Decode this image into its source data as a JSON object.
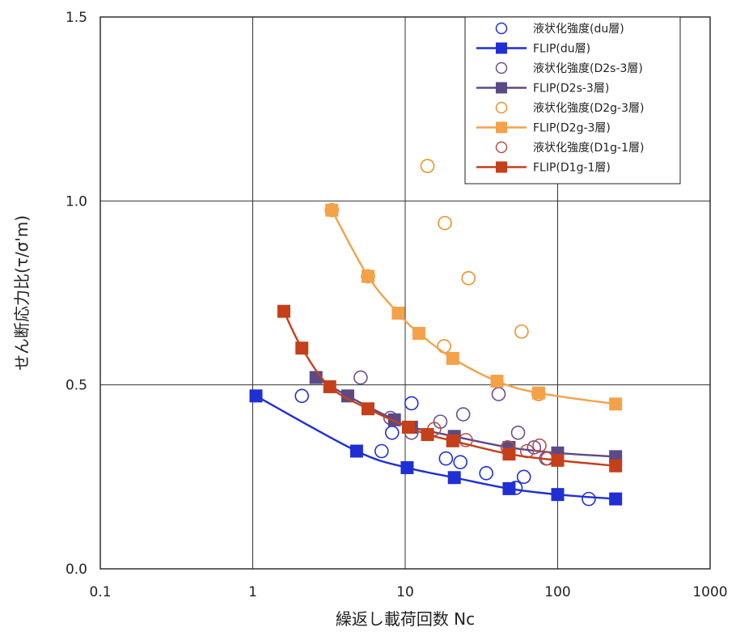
{
  "chart_data": {
    "type": "scatter",
    "title": "",
    "xlabel": "繰返し載荷回数 Nc",
    "ylabel": "せん断応力比(τ/σ'm)",
    "xscale": "log",
    "xlim": [
      0.1,
      1000
    ],
    "ylim": [
      0.0,
      1.5
    ],
    "x_ticks": [
      0.1,
      1,
      10,
      100,
      1000
    ],
    "x_tick_labels": [
      "0.1",
      "1",
      "10",
      "100",
      "1000"
    ],
    "y_ticks": [
      0.0,
      0.5,
      1.0,
      1.5
    ],
    "y_tick_labels": [
      "0.0",
      "0.5",
      "1.0",
      "1.5"
    ],
    "grid": true,
    "legend_position": "top-right",
    "series": [
      {
        "name": "液状化強度(du層)",
        "kind": "scatter",
        "marker": "open-circle",
        "color": "#1f2fd4",
        "x": [
          2.1,
          7.0,
          8.2,
          11.0,
          18.5,
          23.0,
          34.0,
          53.0,
          60.0,
          160.0
        ],
        "y": [
          0.47,
          0.32,
          0.37,
          0.45,
          0.3,
          0.29,
          0.26,
          0.22,
          0.25,
          0.19
        ]
      },
      {
        "name": "FLIP(du層)",
        "kind": "line",
        "marker": "square",
        "color": "#1f2fd4",
        "x": [
          1.05,
          4.8,
          10.3,
          21.0,
          48.0,
          100.0,
          240.0
        ],
        "y": [
          0.47,
          0.32,
          0.275,
          0.248,
          0.218,
          0.202,
          0.19
        ]
      },
      {
        "name": "液状化強度(D2s-3層)",
        "kind": "scatter",
        "marker": "open-circle",
        "color": "#6b4f8e",
        "x": [
          5.1,
          8.0,
          11.0,
          17.0,
          24.0,
          41.0,
          47.0,
          55.0,
          70.0,
          84.0
        ],
        "y": [
          0.52,
          0.41,
          0.37,
          0.4,
          0.42,
          0.475,
          0.33,
          0.37,
          0.33,
          0.3
        ]
      },
      {
        "name": "FLIP(D2s-3層)",
        "kind": "line",
        "marker": "square",
        "color": "#5b4a86",
        "x": [
          2.6,
          4.2,
          8.5,
          11.0,
          21.0,
          48.0,
          100.0,
          240.0
        ],
        "y": [
          0.52,
          0.47,
          0.405,
          0.385,
          0.36,
          0.33,
          0.315,
          0.305
        ]
      },
      {
        "name": "液状化強度(D2g-3層)",
        "kind": "scatter",
        "marker": "open-circle",
        "color": "#e8922a",
        "x": [
          3.3,
          5.7,
          14.0,
          18.2,
          18.0,
          26.0,
          58.0,
          75.0
        ],
        "y": [
          0.975,
          0.795,
          1.095,
          0.94,
          0.605,
          0.79,
          0.645,
          0.475
        ]
      },
      {
        "name": "FLIP(D2g-3層)",
        "kind": "line",
        "marker": "square",
        "color": "#f4a24a",
        "x": [
          3.3,
          5.7,
          9.0,
          12.3,
          20.5,
          40.0,
          75.0,
          240.0
        ],
        "y": [
          0.975,
          0.795,
          0.695,
          0.64,
          0.572,
          0.51,
          0.478,
          0.448
        ]
      },
      {
        "name": "液状化強度(D1g-1層)",
        "kind": "scatter",
        "marker": "open-circle",
        "color": "#b5504a",
        "x": [
          15.5,
          25.0,
          47.0,
          63.0,
          76.0,
          86.0
        ],
        "y": [
          0.38,
          0.35,
          0.33,
          0.32,
          0.335,
          0.3
        ]
      },
      {
        "name": "FLIP(D1g-1層)",
        "kind": "line",
        "marker": "square",
        "color": "#c4401a",
        "x": [
          1.6,
          2.1,
          3.2,
          5.7,
          10.5,
          14.0,
          20.5,
          48.0,
          100.0,
          240.0
        ],
        "y": [
          0.7,
          0.6,
          0.495,
          0.435,
          0.385,
          0.365,
          0.348,
          0.312,
          0.295,
          0.28
        ]
      }
    ]
  }
}
